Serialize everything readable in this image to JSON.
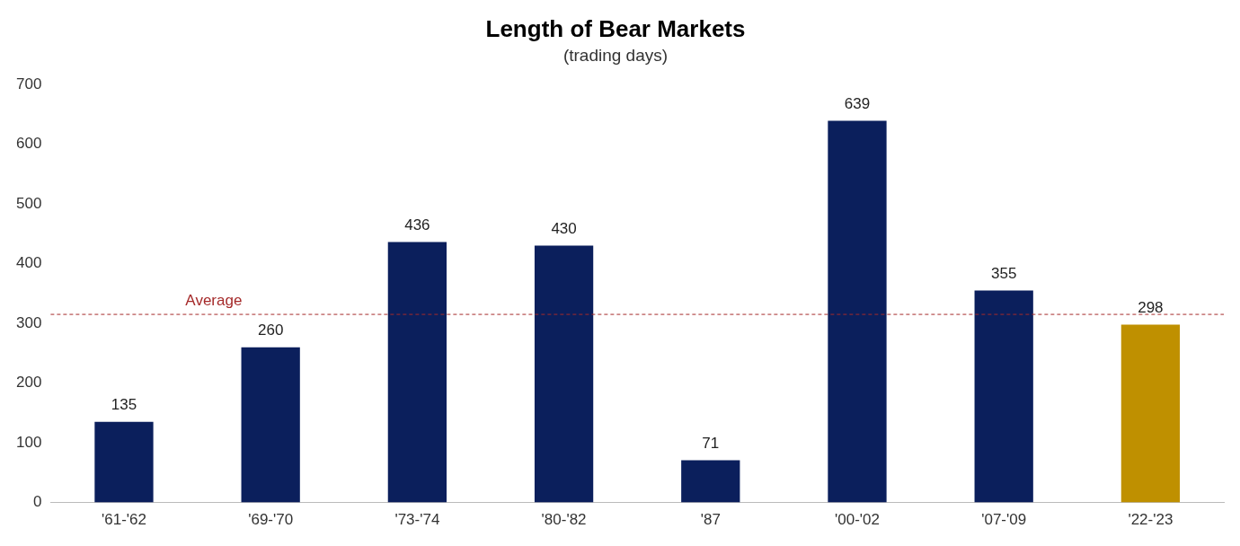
{
  "chart_data": {
    "type": "bar",
    "title": "Length of Bear Markets",
    "subtitle": "(trading days)",
    "categories": [
      "'61-'62",
      "'69-'70",
      "'73-'74",
      "'80-'82",
      "'87",
      "'00-'02",
      "'07-'09",
      "'22-'23"
    ],
    "values": [
      135,
      260,
      436,
      430,
      71,
      639,
      355,
      298
    ],
    "colors": [
      "#0b1f5c",
      "#0b1f5c",
      "#0b1f5c",
      "#0b1f5c",
      "#0b1f5c",
      "#0b1f5c",
      "#0b1f5c",
      "#bf9000"
    ],
    "ylim": [
      0,
      700
    ],
    "yticks": [
      0,
      100,
      200,
      300,
      400,
      500,
      600,
      700
    ],
    "grid": false,
    "legend": false,
    "data_labels": true,
    "ref_lines": [
      {
        "axis": "y",
        "value": 315,
        "label": "Average",
        "color": "#a52a2a",
        "line_style": "dashed"
      }
    ]
  }
}
